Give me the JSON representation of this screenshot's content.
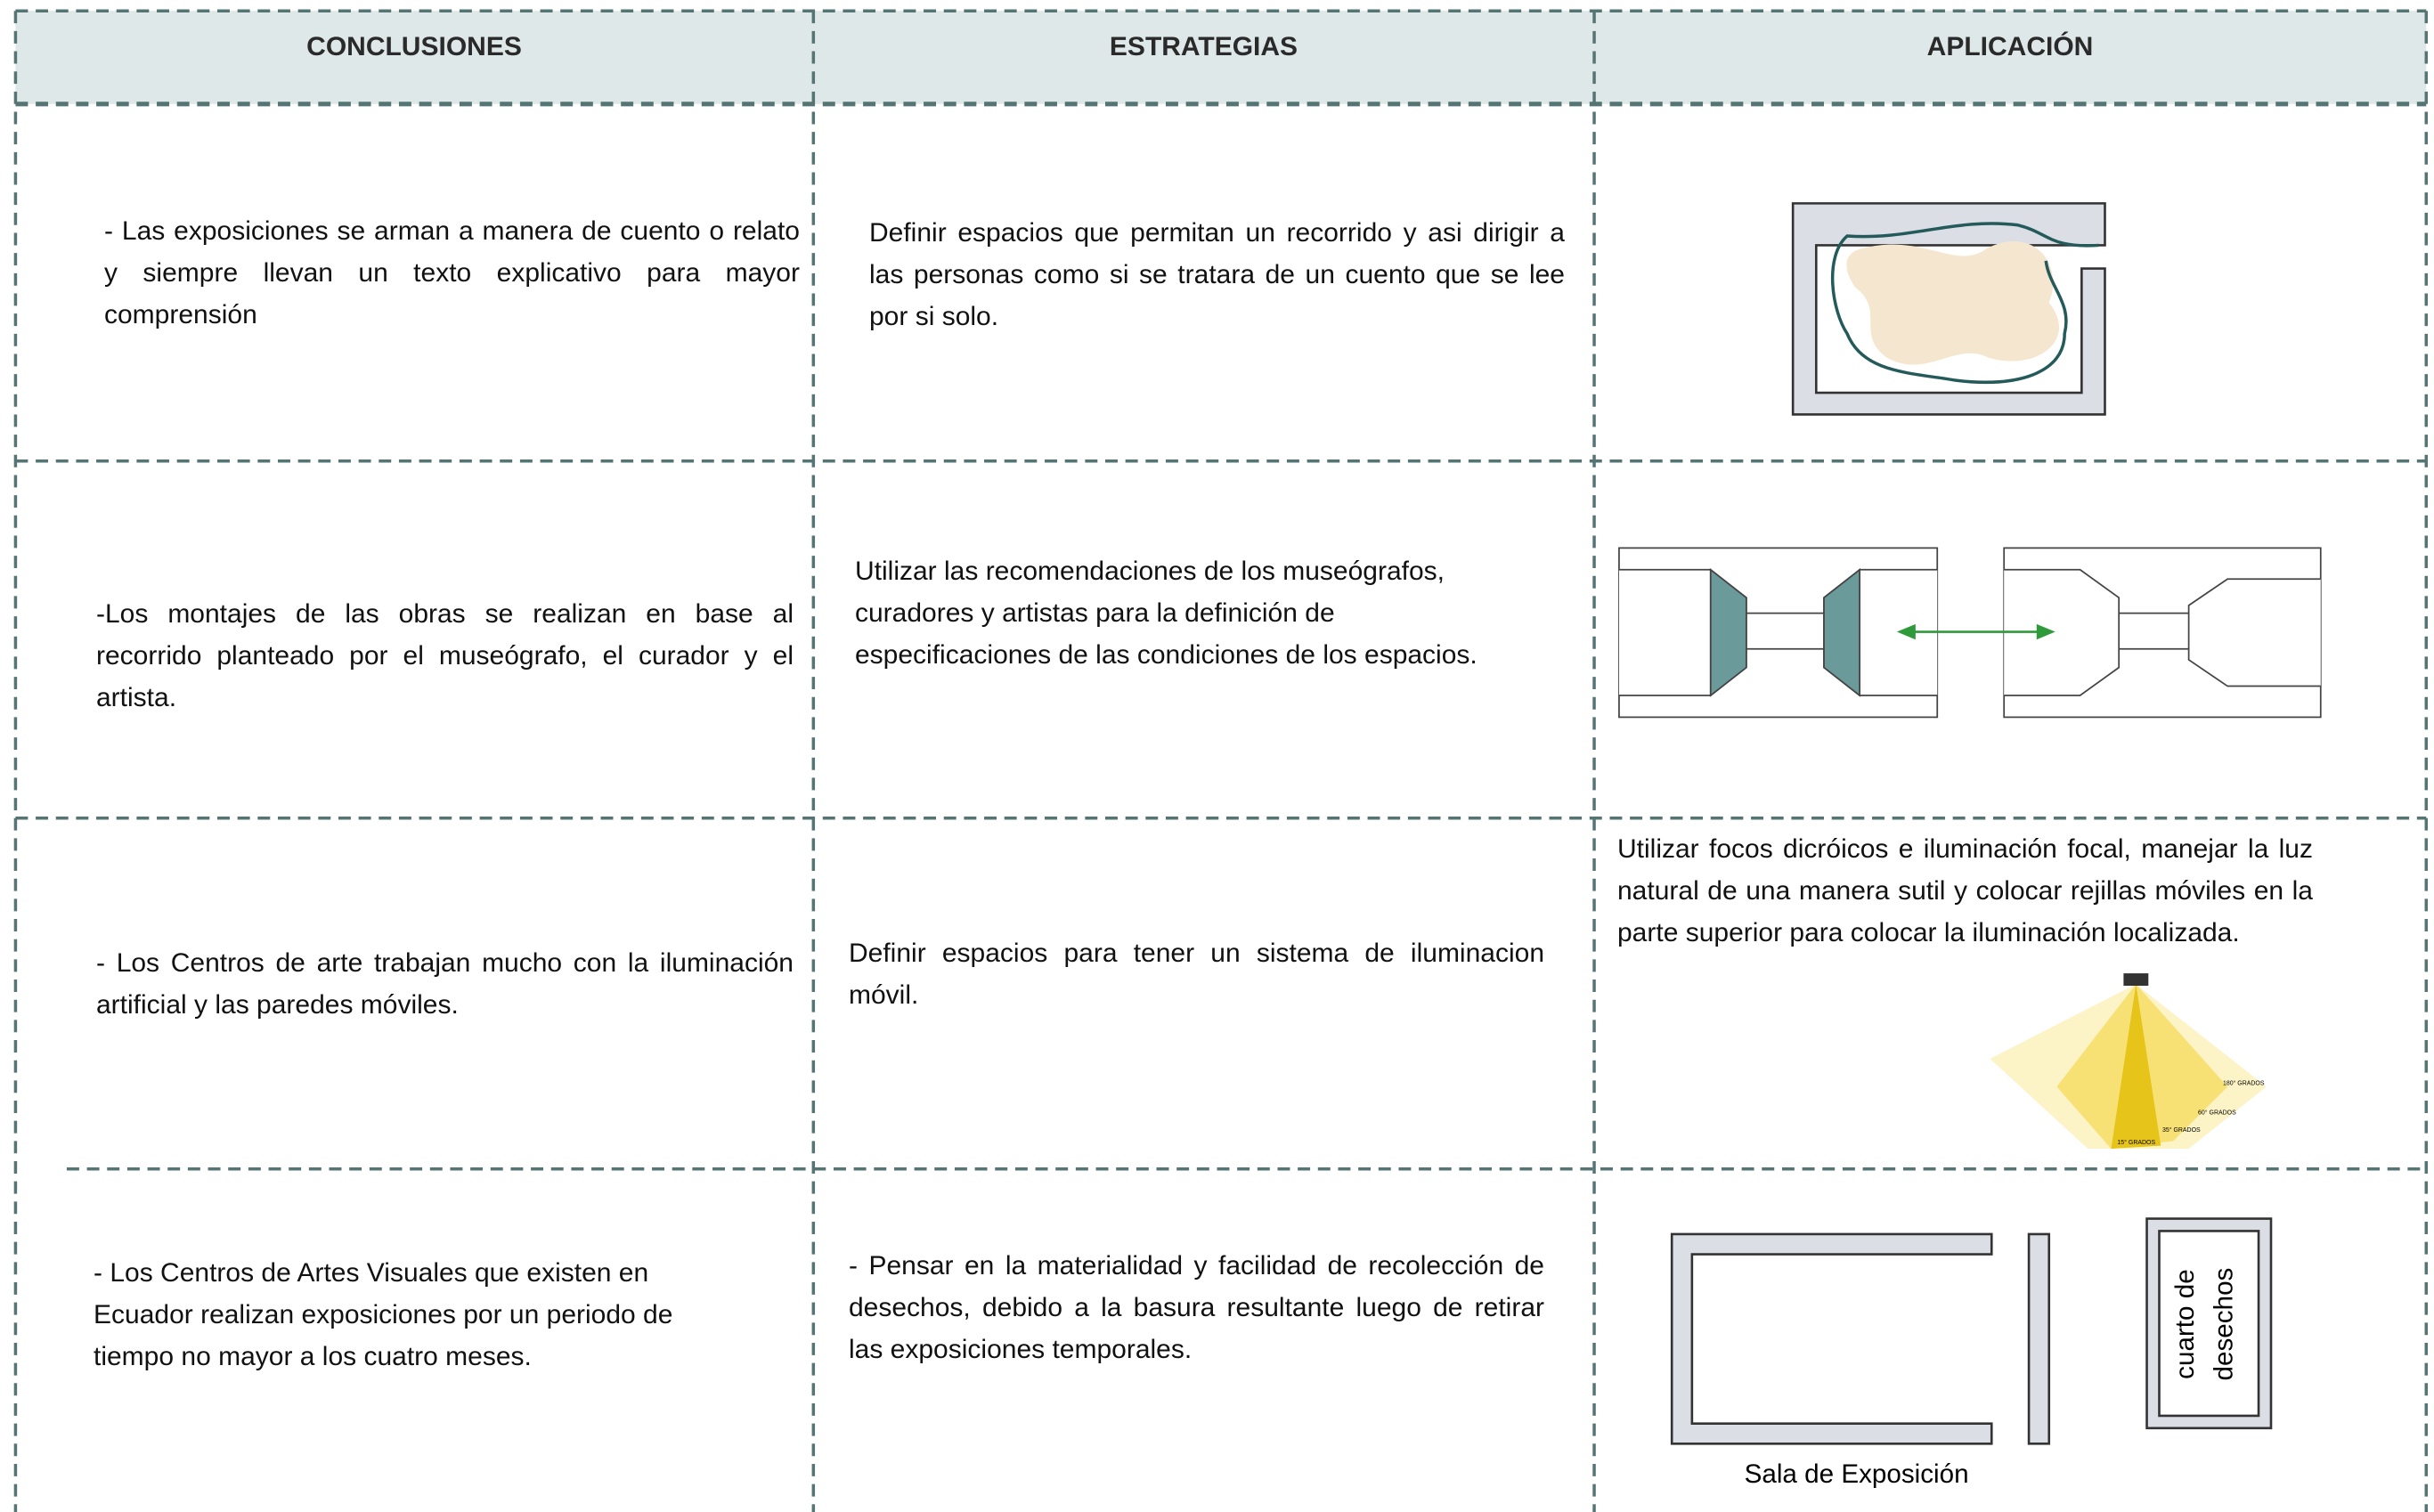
{
  "table": {
    "headers": [
      "CONCLUSIONES",
      "ESTRATEGIAS",
      "APLICACIÓN"
    ],
    "rows": [
      {
        "conclusion": "- Las exposiciones se arman a manera de cuento o relato y siempre llevan un texto explicativo para mayor comprensión",
        "strategy": "Definir espacios que permitan un recorrido y asi dirigir a las personas como si se tratara de un cuento que se lee por si solo."
      },
      {
        "conclusion": "-Los montajes de las obras se realizan en base al recorrido planteado por el museógrafo, el curador y el artista.",
        "strategy": "Utilizar las recomendaciones de los museógrafos, curadores y artistas para la definición de especificaciones de las condiciones de los espacios."
      },
      {
        "conclusion": "- Los  Centros de arte trabajan mucho con la iluminación artificial y las paredes móviles.",
        "strategy": "Definir espacios para tener un sistema de iluminacion móvil.",
        "application": "Utilizar focos dicróicos e iluminación focal, manejar la luz natural de una manera sutil y colocar rejillas móviles en la parte superior para colocar la iluminación localizada.",
        "diagram_labels": [
          "180° GRADOS",
          "60° GRADOS",
          "35° GRADOS",
          "15° GRADOS"
        ]
      },
      {
        "conclusion": "- Los Centros de Artes Visuales que existen en Ecuador realizan exposiciones por un periodo de tiempo no mayor a los cuatro meses.",
        "strategy": "- Pensar  en la materialidad y facilidad de recolección de desechos, debido a la basura resultante  luego de retirar las exposiciones temporales.",
        "diagram_labels": [
          "cuarto de",
          "desechos",
          "Sala de Exposición"
        ]
      }
    ]
  }
}
